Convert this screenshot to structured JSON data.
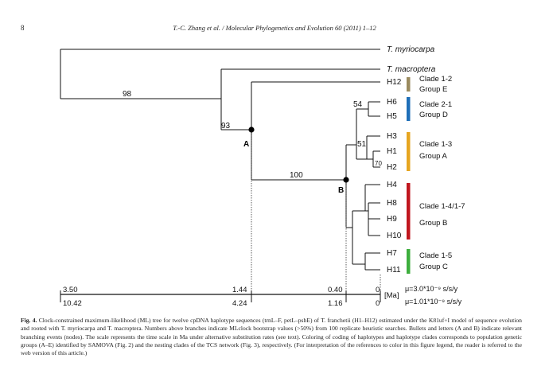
{
  "header": {
    "page_number": "8",
    "running_head": "T.-C. Zhang et al. / Molecular Phylogenetics and Evolution 60 (2011) 1–12"
  },
  "tree": {
    "taxa": [
      "T. myriocarpa",
      "T. macroptera",
      "H12",
      "H6",
      "H5",
      "H3",
      "H1",
      "H2",
      "H4",
      "H8",
      "H9",
      "H10",
      "H7",
      "H11"
    ],
    "support_values": [
      "98",
      "93",
      "100",
      "54",
      "51",
      "70"
    ],
    "node_labels": [
      "A",
      "B"
    ],
    "clades": [
      {
        "label1": "Clade 1-2",
        "label2": "Group E",
        "color": "#9a8a5e"
      },
      {
        "label1": "Clade 2-1",
        "label2": "Group D",
        "color": "#1f6fb8"
      },
      {
        "label1": "Clade 1-3",
        "label2": "Group A",
        "color": "#e6a520"
      },
      {
        "label1": "Clade 1-4/1-7",
        "label2": "Group B",
        "color": "#c0161e"
      },
      {
        "label1": "Clade 1-5",
        "label2": "Group C",
        "color": "#3dae3d"
      }
    ]
  },
  "scale": {
    "top_values": [
      "3.50",
      "1.44",
      "0.40",
      "0"
    ],
    "bottom_values": [
      "10.42",
      "4.24",
      "1.16",
      "0"
    ],
    "unit": "[Ma]",
    "rate1": "μ=3.0*10⁻⁹ s/s/y",
    "rate2": "μ=1.01*10⁻⁹ s/s/y"
  },
  "caption": {
    "label": "Fig. 4.",
    "text": "Clock-constrained maximum-likelihood (ML) tree for twelve cpDNA haplotype sequences (trnL–F, petL–psbE) of T. franchetii (H1–H12) estimated under the K81uf+I model of sequence evolution and rooted with T. myriocarpa and T. macroptera. Numbers above branches indicate MLclock bootstrap values (>50%) from 100 replicate heuristic searches. Bullets and letters (A and B) indicate relevant branching events (nodes). The scale represents the time scale in Ma under alternative substitution rates (see text). Coloring of coding of haplotypes and haplotype clades corresponds to population genetic groups (A–E) identified by SAMOVA (Fig. 2) and the nesting clades of the TCS network (Fig. 3), respectively. (For interpretation of the references to color in this figure legend, the reader is referred to the web version of this article.)"
  }
}
